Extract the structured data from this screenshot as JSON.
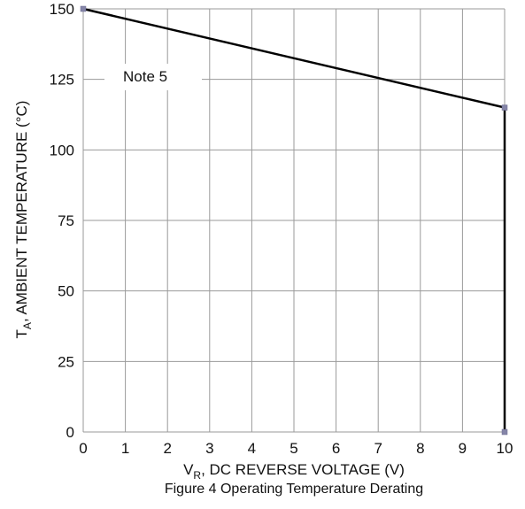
{
  "chart_data": {
    "type": "line",
    "x_ticks": [
      "0",
      "1",
      "2",
      "3",
      "4",
      "5",
      "6",
      "7",
      "8",
      "9",
      "10"
    ],
    "y_ticks": [
      "0",
      "25",
      "50",
      "75",
      "100",
      "125",
      "150"
    ],
    "xlim": [
      0,
      10
    ],
    "ylim": [
      0,
      150
    ],
    "grid": true,
    "xlabel": {
      "main": "V",
      "sub": "R",
      "rest": ", DC REVERSE VOLTAGE (V)"
    },
    "ylabel": {
      "main": "T",
      "sub": "A",
      "rest": ", AMBIENT TEMPERATURE (°C)"
    },
    "caption": "Figure 4 Operating Temperature Derating",
    "annotation": "Note 5",
    "series": [
      {
        "points": [
          {
            "x": 0,
            "y": 150
          },
          {
            "x": 10,
            "y": 115
          },
          {
            "x": 10,
            "y": 0
          }
        ]
      }
    ],
    "colors": {
      "line": "#000000",
      "marker": "#8585a8",
      "grid": "#9a9a9a"
    }
  }
}
